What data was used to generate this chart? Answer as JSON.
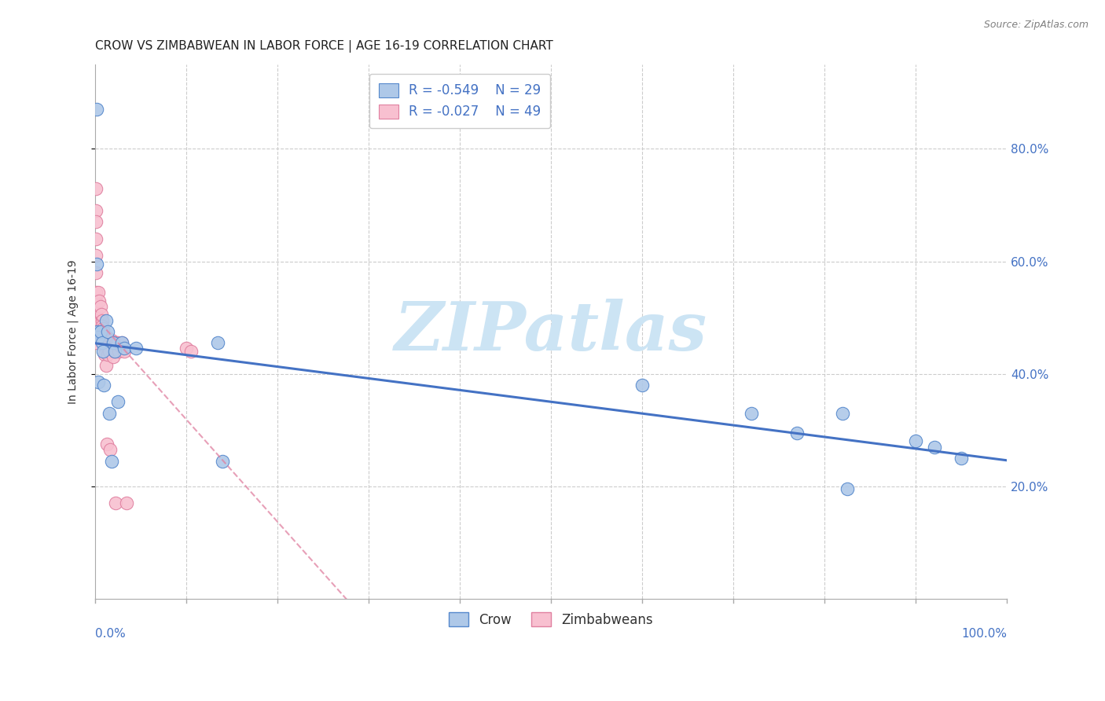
{
  "title": "CROW VS ZIMBABWEAN IN LABOR FORCE | AGE 16-19 CORRELATION CHART",
  "source": "Source: ZipAtlas.com",
  "ylabel": "In Labor Force | Age 16-19",
  "crow_label": "Crow",
  "zimbabwean_label": "Zimbabweans",
  "crow_R": -0.549,
  "crow_N": 29,
  "zimbabwean_R": -0.027,
  "zimbabwean_N": 49,
  "crow_face_color": "#aec8e8",
  "crow_edge_color": "#5588cc",
  "crow_line_color": "#4472c4",
  "zimb_face_color": "#f8c0d0",
  "zimb_edge_color": "#e080a0",
  "zimb_line_color": "#e080a0",
  "background_color": "#ffffff",
  "grid_color": "#cccccc",
  "watermark_color": "#cce4f4",
  "title_color": "#222222",
  "tick_color": "#4472c4",
  "crow_x": [
    0.002,
    0.002,
    0.003,
    0.004,
    0.004,
    0.006,
    0.008,
    0.009,
    0.01,
    0.012,
    0.014,
    0.016,
    0.018,
    0.02,
    0.022,
    0.025,
    0.03,
    0.032,
    0.045,
    0.135,
    0.14,
    0.6,
    0.72,
    0.77,
    0.82,
    0.825,
    0.9,
    0.92,
    0.95
  ],
  "crow_y": [
    0.87,
    0.595,
    0.475,
    0.465,
    0.385,
    0.475,
    0.455,
    0.44,
    0.38,
    0.495,
    0.475,
    0.33,
    0.245,
    0.455,
    0.44,
    0.35,
    0.455,
    0.445,
    0.445,
    0.455,
    0.245,
    0.38,
    0.33,
    0.295,
    0.33,
    0.195,
    0.28,
    0.27,
    0.25
  ],
  "zimb_x": [
    0.001,
    0.001,
    0.001,
    0.001,
    0.001,
    0.001,
    0.001,
    0.001,
    0.001,
    0.001,
    0.001,
    0.001,
    0.001,
    0.001,
    0.001,
    0.004,
    0.005,
    0.006,
    0.007,
    0.008,
    0.008,
    0.009,
    0.009,
    0.01,
    0.01,
    0.01,
    0.011,
    0.012,
    0.013,
    0.013,
    0.014,
    0.015,
    0.016,
    0.017,
    0.018,
    0.019,
    0.02,
    0.021,
    0.022,
    0.023,
    0.024,
    0.025,
    0.026,
    0.028,
    0.03,
    0.032,
    0.035,
    0.1,
    0.105
  ],
  "zimb_y": [
    0.73,
    0.69,
    0.67,
    0.64,
    0.61,
    0.58,
    0.545,
    0.53,
    0.525,
    0.515,
    0.51,
    0.5,
    0.495,
    0.475,
    0.455,
    0.545,
    0.53,
    0.52,
    0.505,
    0.495,
    0.485,
    0.48,
    0.475,
    0.46,
    0.455,
    0.45,
    0.435,
    0.415,
    0.275,
    0.465,
    0.435,
    0.46,
    0.44,
    0.265,
    0.46,
    0.455,
    0.43,
    0.455,
    0.44,
    0.17,
    0.455,
    0.455,
    0.44,
    0.45,
    0.455,
    0.44,
    0.17,
    0.445,
    0.44
  ],
  "xlim": [
    0.0,
    1.0
  ],
  "ylim": [
    0.0,
    0.95
  ],
  "x_left_label": "0.0%",
  "x_right_label": "100.0%",
  "ytick_pct": [
    20,
    40,
    60,
    80
  ],
  "grid_ytick_pct": [
    20,
    40,
    60,
    80
  ]
}
